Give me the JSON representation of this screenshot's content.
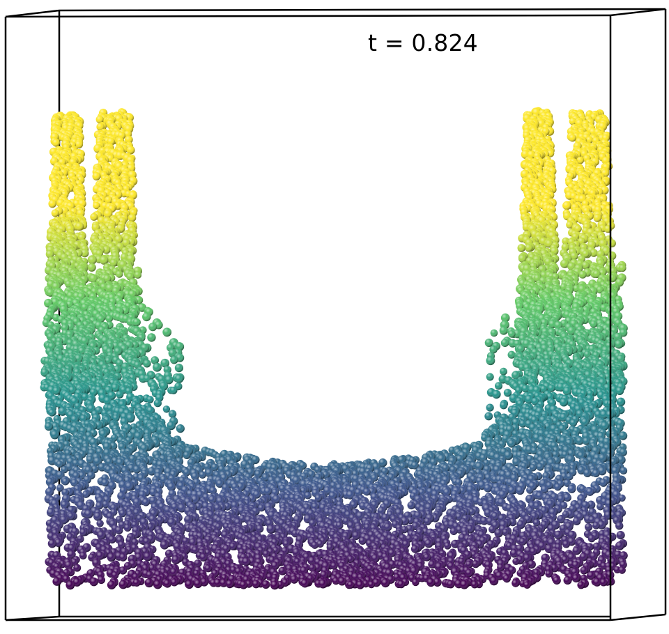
{
  "simulation": {
    "time_label": "t = 0.824"
  },
  "colors": {
    "background": "#ffffff",
    "box_edges": "#000000",
    "colormap": "viridis",
    "viridis_stops": [
      "#440154",
      "#3b528b",
      "#21918c",
      "#5ec962",
      "#fde725"
    ]
  }
}
